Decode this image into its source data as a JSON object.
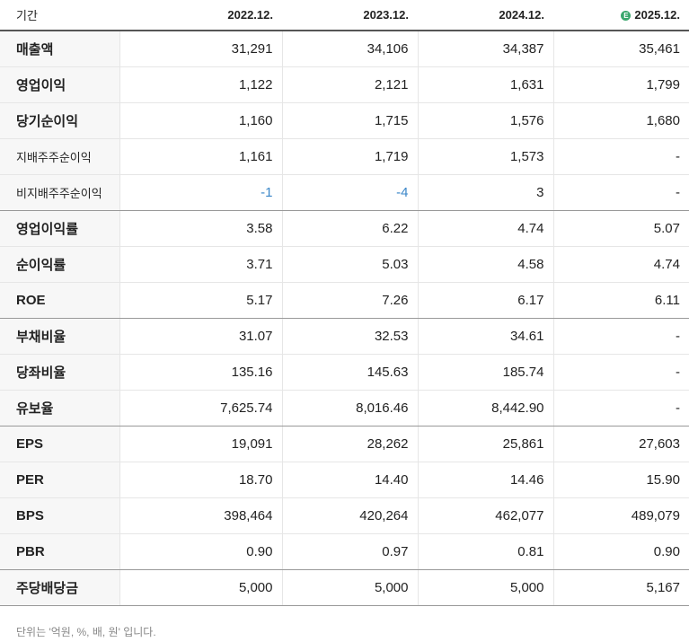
{
  "header": {
    "period_label": "기간",
    "estimate_badge": "E",
    "columns": [
      "2022.12.",
      "2023.12.",
      "2024.12.",
      "2025.12."
    ]
  },
  "rows": [
    {
      "label": "매출액",
      "values": [
        "31,291",
        "34,106",
        "34,387",
        "35,461"
      ]
    },
    {
      "label": "영업이익",
      "values": [
        "1,122",
        "2,121",
        "1,631",
        "1,799"
      ]
    },
    {
      "label": "당기순이익",
      "values": [
        "1,160",
        "1,715",
        "1,576",
        "1,680"
      ]
    },
    {
      "label": "지배주주순이익",
      "values": [
        "1,161",
        "1,719",
        "1,573",
        "-"
      ]
    },
    {
      "label": "비지배주주순이익",
      "values": [
        "-1",
        "-4",
        "3",
        "-"
      ]
    },
    {
      "label": "영업이익률",
      "values": [
        "3.58",
        "6.22",
        "4.74",
        "5.07"
      ]
    },
    {
      "label": "순이익률",
      "values": [
        "3.71",
        "5.03",
        "4.58",
        "4.74"
      ]
    },
    {
      "label": "ROE",
      "values": [
        "5.17",
        "7.26",
        "6.17",
        "6.11"
      ]
    },
    {
      "label": "부채비율",
      "values": [
        "31.07",
        "32.53",
        "34.61",
        "-"
      ]
    },
    {
      "label": "당좌비율",
      "values": [
        "135.16",
        "145.63",
        "185.74",
        "-"
      ]
    },
    {
      "label": "유보율",
      "values": [
        "7,625.74",
        "8,016.46",
        "8,442.90",
        "-"
      ]
    },
    {
      "label": "EPS",
      "values": [
        "19,091",
        "28,262",
        "25,861",
        "27,603"
      ]
    },
    {
      "label": "PER",
      "values": [
        "18.70",
        "14.40",
        "14.46",
        "15.90"
      ]
    },
    {
      "label": "BPS",
      "values": [
        "398,464",
        "420,264",
        "462,077",
        "489,079"
      ]
    },
    {
      "label": "PBR",
      "values": [
        "0.90",
        "0.97",
        "0.81",
        "0.90"
      ]
    },
    {
      "label": "주당배당금",
      "values": [
        "5,000",
        "5,000",
        "5,000",
        "5,167"
      ]
    }
  ],
  "note": "단위는 '억원, %, 배, 원' 입니다."
}
